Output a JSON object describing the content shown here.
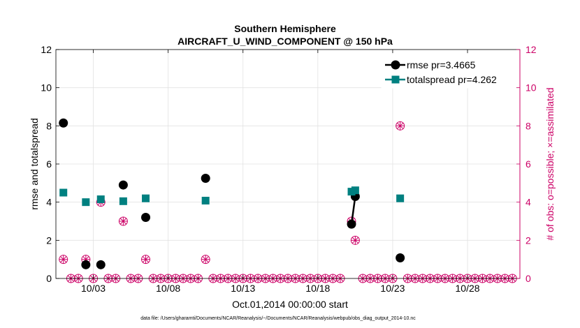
{
  "chart_data": {
    "type": "line",
    "title": "Southern Hemisphere",
    "subtitle": "AIRCRAFT_U_WIND_COMPONENT @ 150 hPa",
    "xlabel": "Oct.01,2014 00:00:00 start",
    "ylabel": "rmse and totalspread",
    "ylabel_right": "# of obs: o=possible; ×=assimilated",
    "footnote": "data file: /Users/gharamti/Documents/NCAR/Reanalysis/~/Documents/NCAR/Reanalysis/webpub/obs_diag_output_2014-10.nc",
    "xlim": [
      0.5,
      31.5
    ],
    "ylim": [
      0,
      12
    ],
    "ylim_right": [
      0,
      12
    ],
    "grid": true,
    "legend_position": "top-right",
    "x_ticks": [
      3,
      8,
      13,
      18,
      23,
      28
    ],
    "x_tick_labels": [
      "10/03",
      "10/08",
      "10/13",
      "10/18",
      "10/23",
      "10/28"
    ],
    "y_ticks": [
      0,
      2,
      4,
      6,
      8,
      10,
      12
    ],
    "y_tick_labels": [
      "0",
      "2",
      "4",
      "6",
      "8",
      "10",
      "12"
    ],
    "y_ticks_right": [
      0,
      2,
      4,
      6,
      8,
      10,
      12
    ],
    "y_tick_labels_right": [
      "0",
      "2",
      "4",
      "6",
      "8",
      "10",
      "12"
    ],
    "series": [
      {
        "name": "rmse pr=3.4665",
        "color": "#000000",
        "marker": "circle",
        "x": [
          1,
          2,
          2.5,
          3,
          3.5,
          4,
          4.5,
          5,
          5.5,
          6,
          6.5,
          7,
          7.5,
          8,
          8.5,
          9,
          9.5,
          10,
          10.5,
          11,
          11.5,
          12,
          12.5,
          13,
          13.5,
          14,
          14.5,
          15,
          15.5,
          16,
          16.5,
          17,
          17.5,
          18,
          18.5,
          19,
          19.5,
          20,
          20.25,
          20.5,
          21,
          21.5,
          22,
          22.5,
          23,
          23.5
        ],
        "values": [
          8.15,
          null,
          0.72,
          null,
          0.72,
          null,
          null,
          4.9,
          null,
          null,
          3.2,
          null,
          null,
          null,
          null,
          null,
          null,
          null,
          5.25,
          null,
          null,
          null,
          null,
          null,
          null,
          null,
          null,
          null,
          null,
          null,
          null,
          null,
          null,
          null,
          null,
          null,
          null,
          null,
          2.85,
          4.3,
          null,
          null,
          null,
          null,
          null,
          1.08
        ]
      },
      {
        "name": "totalspread pr=4.262",
        "color": "#008080",
        "marker": "square",
        "x": [
          1,
          2,
          2.5,
          3,
          3.5,
          4,
          4.5,
          5,
          5.5,
          6,
          6.5,
          7,
          7.5,
          8,
          8.5,
          9,
          9.5,
          10,
          10.5,
          11,
          11.5,
          12,
          12.5,
          13,
          13.5,
          14,
          14.5,
          15,
          15.5,
          16,
          16.5,
          17,
          17.5,
          18,
          18.5,
          19,
          19.5,
          20,
          20.25,
          20.5,
          21,
          21.5,
          22,
          22.5,
          23,
          23.5
        ],
        "values": [
          4.5,
          null,
          4.0,
          null,
          4.15,
          null,
          null,
          4.05,
          null,
          null,
          4.2,
          null,
          null,
          null,
          null,
          null,
          null,
          null,
          4.08,
          null,
          null,
          null,
          null,
          null,
          null,
          null,
          null,
          null,
          null,
          null,
          null,
          null,
          null,
          null,
          null,
          null,
          null,
          null,
          4.55,
          4.62,
          null,
          null,
          null,
          null,
          null,
          4.2
        ]
      }
    ],
    "obs_counts": {
      "name": "# of obs",
      "color": "#cc0066",
      "x": [
        1,
        2.5,
        3.5,
        5,
        6.5,
        10.5,
        20.25,
        20.5,
        23.5
      ],
      "possible": [
        1,
        1,
        4,
        3,
        1,
        1,
        3,
        2,
        8
      ],
      "assimilated": [
        1,
        1,
        4,
        3,
        1,
        1,
        3,
        2,
        8
      ]
    }
  }
}
